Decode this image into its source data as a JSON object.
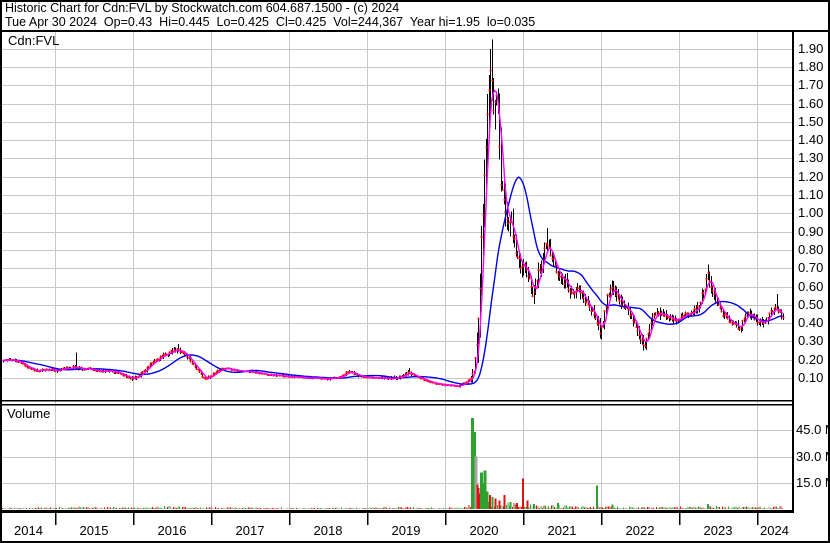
{
  "header": {
    "line1": "Historic Chart for Cdn:FVL by Stockwatch.com 604.687.1500 - (c) 2024",
    "line2": "Tue Apr 30 2024  Op=0.43  Hi=0.445  Lo=0.425  Cl=0.425  Vol=244,367  Year hi=1.95  lo=0.035"
  },
  "chart_data": {
    "type": "line",
    "subtype": "stock-highlow-bars-with-volume",
    "title": "Historic Chart for Cdn:FVL",
    "symbol_label": "Cdn:FVL",
    "volume_label": "Volume",
    "legend_position": "none",
    "grid": true,
    "noise_seed": 11,
    "x_axis": {
      "start": 2014.33,
      "end": 2024.34,
      "year_labels": [
        "2014",
        "2015",
        "2016",
        "2017",
        "2018",
        "2019",
        "2020",
        "2021",
        "2022",
        "2023",
        "2024"
      ]
    },
    "price_axis": {
      "min": 0.0,
      "max": 1.98,
      "tick_labels": [
        "1.90",
        "1.80",
        "1.70",
        "1.60",
        "1.50",
        "1.40",
        "1.30",
        "1.20",
        "1.10",
        "1.00",
        "0.90",
        "0.80",
        "0.70",
        "0.60",
        "0.50",
        "0.40",
        "0.30",
        "0.20",
        "0.10"
      ]
    },
    "volume_axis": {
      "max_m": 63,
      "ticks": [
        {
          "value": 45,
          "label": "45.0 M"
        },
        {
          "value": 30,
          "label": "30.0 M"
        },
        {
          "value": 15,
          "label": "15.0 M"
        }
      ]
    },
    "series": {
      "close_keyframes": [
        [
          2014.33,
          0.195
        ],
        [
          2014.45,
          0.2
        ],
        [
          2014.55,
          0.185
        ],
        [
          2014.65,
          0.16
        ],
        [
          2014.78,
          0.135
        ],
        [
          2014.9,
          0.148
        ],
        [
          2015.0,
          0.14
        ],
        [
          2015.12,
          0.15
        ],
        [
          2015.25,
          0.16
        ],
        [
          2015.35,
          0.15
        ],
        [
          2015.45,
          0.15
        ],
        [
          2015.58,
          0.135
        ],
        [
          2015.7,
          0.142
        ],
        [
          2015.82,
          0.125
        ],
        [
          2015.92,
          0.105
        ],
        [
          2016.0,
          0.1
        ],
        [
          2016.05,
          0.105
        ],
        [
          2016.18,
          0.155
        ],
        [
          2016.3,
          0.2
        ],
        [
          2016.42,
          0.23
        ],
        [
          2016.5,
          0.245
        ],
        [
          2016.58,
          0.255
        ],
        [
          2016.68,
          0.225
        ],
        [
          2016.78,
          0.17
        ],
        [
          2016.85,
          0.13
        ],
        [
          2016.93,
          0.09
        ],
        [
          2017.02,
          0.12
        ],
        [
          2017.12,
          0.148
        ],
        [
          2017.22,
          0.15
        ],
        [
          2017.35,
          0.14
        ],
        [
          2017.5,
          0.135
        ],
        [
          2017.65,
          0.125
        ],
        [
          2017.8,
          0.115
        ],
        [
          2017.95,
          0.11
        ],
        [
          2018.1,
          0.105
        ],
        [
          2018.3,
          0.1
        ],
        [
          2018.5,
          0.095
        ],
        [
          2018.62,
          0.1
        ],
        [
          2018.72,
          0.125
        ],
        [
          2018.78,
          0.135
        ],
        [
          2018.88,
          0.115
        ],
        [
          2019.0,
          0.103
        ],
        [
          2019.15,
          0.1
        ],
        [
          2019.3,
          0.1
        ],
        [
          2019.45,
          0.105
        ],
        [
          2019.52,
          0.13
        ],
        [
          2019.6,
          0.115
        ],
        [
          2019.7,
          0.095
        ],
        [
          2019.82,
          0.075
        ],
        [
          2019.95,
          0.065
        ],
        [
          2020.05,
          0.06
        ],
        [
          2020.18,
          0.057
        ],
        [
          2020.3,
          0.085
        ],
        [
          2020.36,
          0.11
        ],
        [
          2020.4,
          0.22
        ],
        [
          2020.44,
          0.55
        ],
        [
          2020.48,
          1.0
        ],
        [
          2020.52,
          1.35
        ],
        [
          2020.58,
          1.82
        ],
        [
          2020.62,
          1.58
        ],
        [
          2020.66,
          1.7
        ],
        [
          2020.72,
          1.15
        ],
        [
          2020.78,
          1.02
        ],
        [
          2020.84,
          0.95
        ],
        [
          2020.9,
          0.8
        ],
        [
          2020.97,
          0.72
        ],
        [
          2021.03,
          0.7
        ],
        [
          2021.12,
          0.56
        ],
        [
          2021.2,
          0.68
        ],
        [
          2021.31,
          0.85
        ],
        [
          2021.4,
          0.72
        ],
        [
          2021.5,
          0.65
        ],
        [
          2021.6,
          0.58
        ],
        [
          2021.72,
          0.58
        ],
        [
          2021.82,
          0.5
        ],
        [
          2021.92,
          0.44
        ],
        [
          2021.99,
          0.34
        ],
        [
          2022.08,
          0.55
        ],
        [
          2022.15,
          0.59
        ],
        [
          2022.25,
          0.52
        ],
        [
          2022.37,
          0.45
        ],
        [
          2022.47,
          0.36
        ],
        [
          2022.56,
          0.28
        ],
        [
          2022.65,
          0.42
        ],
        [
          2022.73,
          0.46
        ],
        [
          2022.85,
          0.44
        ],
        [
          2022.95,
          0.42
        ],
        [
          2023.05,
          0.44
        ],
        [
          2023.15,
          0.45
        ],
        [
          2023.25,
          0.49
        ],
        [
          2023.33,
          0.6
        ],
        [
          2023.37,
          0.66
        ],
        [
          2023.42,
          0.6
        ],
        [
          2023.47,
          0.52
        ],
        [
          2023.57,
          0.44
        ],
        [
          2023.68,
          0.4
        ],
        [
          2023.78,
          0.37
        ],
        [
          2023.87,
          0.46
        ],
        [
          2023.97,
          0.42
        ],
        [
          2024.07,
          0.4
        ],
        [
          2024.15,
          0.44
        ],
        [
          2024.23,
          0.49
        ],
        [
          2024.3,
          0.45
        ],
        [
          2024.34,
          0.43
        ]
      ],
      "bar_range_keyframes": [
        [
          2014.33,
          0.01
        ],
        [
          2015.2,
          0.01
        ],
        [
          2015.3,
          0.016
        ],
        [
          2015.4,
          0.008
        ],
        [
          2016.2,
          0.012
        ],
        [
          2016.55,
          0.016
        ],
        [
          2016.9,
          0.01
        ],
        [
          2017.2,
          0.007
        ],
        [
          2018.4,
          0.006
        ],
        [
          2018.75,
          0.009
        ],
        [
          2019.1,
          0.005
        ],
        [
          2019.5,
          0.014
        ],
        [
          2019.65,
          0.006
        ],
        [
          2020.1,
          0.005
        ],
        [
          2020.32,
          0.01
        ],
        [
          2020.42,
          0.1
        ],
        [
          2020.55,
          0.13
        ],
        [
          2020.68,
          0.12
        ],
        [
          2020.8,
          0.09
        ],
        [
          2020.95,
          0.055
        ],
        [
          2021.1,
          0.045
        ],
        [
          2021.3,
          0.05
        ],
        [
          2021.6,
          0.042
        ],
        [
          2021.9,
          0.035
        ],
        [
          2022.1,
          0.042
        ],
        [
          2022.4,
          0.032
        ],
        [
          2022.6,
          0.035
        ],
        [
          2022.9,
          0.022
        ],
        [
          2023.2,
          0.022
        ],
        [
          2023.37,
          0.042
        ],
        [
          2023.6,
          0.022
        ],
        [
          2023.9,
          0.026
        ],
        [
          2024.34,
          0.026
        ]
      ],
      "high_spikes": [
        [
          2015.28,
          0.24
        ],
        [
          2016.58,
          0.285
        ],
        [
          2019.55,
          0.155
        ],
        [
          2020.6,
          1.95
        ],
        [
          2021.31,
          0.92
        ],
        [
          2022.15,
          0.63
        ],
        [
          2023.37,
          0.72
        ],
        [
          2024.25,
          0.56
        ]
      ],
      "ma_fast": {
        "name": "short moving average",
        "color": "#FF00FF",
        "window": 5
      },
      "ma_slow": {
        "name": "long moving average",
        "color": "#0000E6",
        "window": 26
      }
    },
    "volume": {
      "base_keyframes": [
        [
          2014.33,
          0.45
        ],
        [
          2015.0,
          0.55
        ],
        [
          2015.3,
          0.8
        ],
        [
          2016.0,
          0.6
        ],
        [
          2016.45,
          1.1
        ],
        [
          2017.0,
          0.6
        ],
        [
          2018.0,
          0.45
        ],
        [
          2019.0,
          0.45
        ],
        [
          2019.55,
          0.8
        ],
        [
          2019.9,
          0.4
        ],
        [
          2020.25,
          0.6
        ],
        [
          2020.4,
          3.5
        ],
        [
          2020.55,
          3.0
        ],
        [
          2020.75,
          2.0
        ],
        [
          2021.0,
          2.2
        ],
        [
          2021.3,
          1.5
        ],
        [
          2021.6,
          1.1
        ],
        [
          2022.0,
          0.9
        ],
        [
          2022.5,
          0.75
        ],
        [
          2023.0,
          0.8
        ],
        [
          2023.4,
          1.0
        ],
        [
          2024.0,
          0.8
        ],
        [
          2024.34,
          1.0
        ]
      ],
      "spikes": [
        [
          2020.355,
          52,
          "up"
        ],
        [
          2020.375,
          44,
          "up"
        ],
        [
          2020.395,
          30,
          "gray"
        ],
        [
          2020.415,
          14,
          "down"
        ],
        [
          2020.43,
          12,
          "down"
        ],
        [
          2020.445,
          9,
          "down"
        ],
        [
          2020.465,
          21,
          "up"
        ],
        [
          2020.49,
          15,
          "up"
        ],
        [
          2020.515,
          22,
          "up"
        ],
        [
          2020.545,
          10,
          "up"
        ],
        [
          2020.575,
          8,
          "down"
        ],
        [
          2020.61,
          7,
          "up"
        ],
        [
          2020.65,
          6,
          "down"
        ],
        [
          2020.7,
          5,
          "down"
        ],
        [
          2020.76,
          8,
          "down"
        ],
        [
          2020.84,
          4,
          "up"
        ],
        [
          2020.92,
          3.5,
          "down"
        ],
        [
          2021.0,
          17.5,
          "down"
        ],
        [
          2021.06,
          5,
          "down"
        ],
        [
          2021.14,
          3,
          "up"
        ],
        [
          2021.45,
          3.5,
          "up"
        ],
        [
          2021.95,
          13.5,
          "up"
        ],
        [
          2022.15,
          2.5,
          "up"
        ],
        [
          2023.37,
          3,
          "up"
        ]
      ]
    },
    "colors": {
      "background": "#FFFFFF",
      "border": "#000000",
      "grid": "#C8C8C8",
      "bar": "#000000",
      "close_tick": "#FF0000",
      "up": "#2FA12F",
      "down": "#DE1212",
      "gray": "#A6A6A6",
      "text": "#000000"
    }
  }
}
